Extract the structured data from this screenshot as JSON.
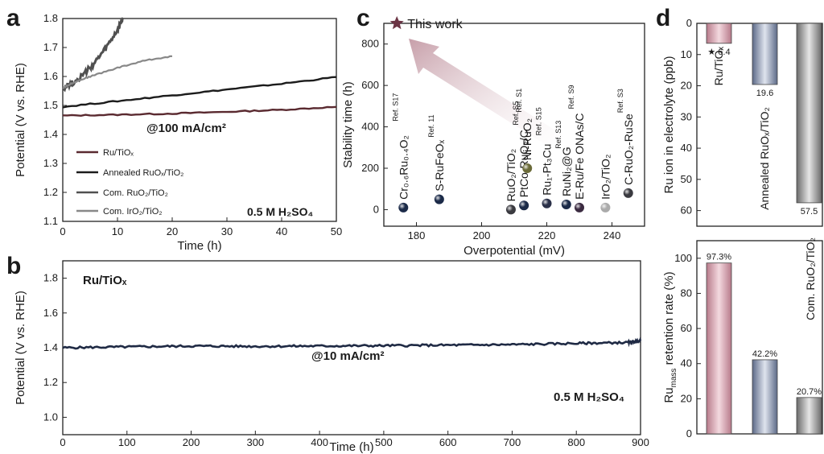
{
  "panels": {
    "a": "a",
    "b": "b",
    "c": "c",
    "d": "d"
  },
  "chart_data": [
    {
      "id": "a",
      "type": "line",
      "xlabel": "Time (h)",
      "ylabel": "Potential (V vs. RHE)",
      "xlim": [
        0,
        50
      ],
      "ylim": [
        1.1,
        1.8
      ],
      "xticks": [
        "0",
        "10",
        "20",
        "30",
        "40",
        "50"
      ],
      "yticks": [
        "1.1",
        "1.2",
        "1.3",
        "1.4",
        "1.5",
        "1.6",
        "1.7",
        "1.8"
      ],
      "annotation": "@100 mA/cm²",
      "electrolyte": "0.5 M H₂SO₄",
      "colors": {
        "Ru/TiOx": "#5a2a30",
        "Annealed": "#1c1c1c",
        "RuO2": "#505050",
        "IrO2": "#888888"
      },
      "legend": [
        "Ru/TiOₓ",
        "Annealed RuOₓ/TiO₂",
        "Com. RuO₂/TiO₂",
        "Com. IrO₂/TiO₂"
      ],
      "series": [
        {
          "name": "Ru/TiOₓ",
          "x": [
            0,
            10,
            20,
            30,
            40,
            50
          ],
          "y": [
            1.465,
            1.468,
            1.472,
            1.478,
            1.485,
            1.495
          ]
        },
        {
          "name": "Annealed RuOₓ/TiO₂",
          "x": [
            0,
            10,
            20,
            30,
            40,
            50
          ],
          "y": [
            1.495,
            1.515,
            1.535,
            1.555,
            1.575,
            1.598
          ]
        },
        {
          "name": "Com. RuO₂/TiO₂",
          "x": [
            0,
            2,
            4,
            6,
            8,
            10,
            11
          ],
          "y": [
            1.56,
            1.58,
            1.61,
            1.65,
            1.7,
            1.76,
            1.8
          ]
        },
        {
          "name": "Com. IrO₂/TiO₂",
          "x": [
            0,
            2,
            5,
            10,
            15,
            20
          ],
          "y": [
            1.56,
            1.58,
            1.6,
            1.63,
            1.655,
            1.67
          ]
        }
      ]
    },
    {
      "id": "b",
      "type": "line",
      "xlabel": "Time (h)",
      "ylabel": "Potential (V vs. RHE)",
      "xlim": [
        0,
        900
      ],
      "ylim": [
        0.9,
        1.9
      ],
      "xticks": [
        "0",
        "100",
        "200",
        "300",
        "400",
        "500",
        "600",
        "700",
        "800",
        "900"
      ],
      "yticks": [
        "1.0",
        "1.2",
        "1.4",
        "1.6",
        "1.8"
      ],
      "sample": "Ru/TiOₓ",
      "annotation": "@10 mA/cm²",
      "electrolyte": "0.5 M H₂SO₄",
      "color": "#1f2a44",
      "series": [
        {
          "name": "Ru/TiOₓ",
          "x": [
            0,
            100,
            200,
            300,
            400,
            500,
            600,
            700,
            800,
            880,
            900
          ],
          "y": [
            1.4,
            1.405,
            1.41,
            1.408,
            1.41,
            1.412,
            1.415,
            1.418,
            1.425,
            1.43,
            1.44
          ]
        }
      ]
    },
    {
      "id": "c",
      "type": "scatter",
      "xlabel": "Overpotential (mV)",
      "ylabel": "Stability time (h)",
      "xlim": [
        170,
        250
      ],
      "ylim": [
        -80,
        900
      ],
      "xticks": [
        "180",
        "200",
        "220",
        "240"
      ],
      "yticks": [
        "0",
        "200",
        "400",
        "600",
        "800"
      ],
      "this_work_label": "This work",
      "points": [
        {
          "label": "This work",
          "ref": "",
          "x": 174,
          "y": 900,
          "color": "#6b3545",
          "marker": "star"
        },
        {
          "label": "Cr₀.₆Ru₀.₄O₂",
          "ref": "Ref. S17",
          "x": 176,
          "y": 10,
          "color": "#1b2a48",
          "marker": "circle"
        },
        {
          "label": "S-RuFeOₓ",
          "ref": "Ref. 11",
          "x": 187,
          "y": 50,
          "color": "#1b2a48",
          "marker": "circle"
        },
        {
          "label": "RuO₂/TiO₂",
          "ref": "",
          "x": 209,
          "y": 0,
          "color": "#3a3a40",
          "marker": "circle"
        },
        {
          "label": "PtCo-RuO₂/C",
          "ref": "Ref. S5",
          "x": 213,
          "y": 20,
          "color": "#1b2a48",
          "marker": "circle"
        },
        {
          "label": "Ni-RuO₂",
          "ref": "Ref. S1",
          "x": 214,
          "y": 200,
          "color": "#6a6a38",
          "marker": "circle"
        },
        {
          "label": "Ru₁-Pt₃Cu",
          "ref": "Ref. S15",
          "x": 220,
          "y": 30,
          "color": "#2a3048",
          "marker": "circle"
        },
        {
          "label": "RuNi₂@G",
          "ref": "Ref. S13",
          "x": 226,
          "y": 25,
          "color": "#1b2a48",
          "marker": "circle"
        },
        {
          "label": "E-Ru/Fe ONAs/C",
          "ref": "Ref. S9",
          "x": 230,
          "y": 10,
          "color": "#3a2a40",
          "marker": "circle"
        },
        {
          "label": "IrO₂/TiO₂",
          "ref": "",
          "x": 238,
          "y": 10,
          "color": "#aaaaaa",
          "marker": "circle"
        },
        {
          "label": "C-RuO₂-RuSe",
          "ref": "Ref. S3",
          "x": 245,
          "y": 80,
          "color": "#3a3a40",
          "marker": "circle"
        }
      ]
    },
    {
      "id": "d_top",
      "type": "bar",
      "ylabel": "Ru ion in electrolyte (ppb)",
      "ylim": [
        0,
        65
      ],
      "yticks": [
        "0",
        "10",
        "20",
        "30",
        "40",
        "50",
        "60"
      ],
      "inverted": true,
      "categories": [
        "Ru/TiOₓ",
        "Annealed RuOₓ/TiO₂",
        "Com. RuO₂/TiO₂"
      ],
      "values": [
        6.4,
        19.6,
        57.5
      ],
      "value_labels": [
        "★ 6.4",
        "19.6",
        "57.5"
      ],
      "colors": [
        "#d9a7b2",
        "#98a3bd",
        "#a8a8a8"
      ]
    },
    {
      "id": "d_bottom",
      "type": "bar",
      "ylabel": "Ru mass retention rate (%)",
      "ylabel_parts": {
        "main": "Ru",
        "sub": "mass",
        "rest": " retention rate (%)"
      },
      "ylim": [
        0,
        110
      ],
      "yticks": [
        "0",
        "20",
        "40",
        "60",
        "80",
        "100"
      ],
      "categories": [
        "Ru/TiOₓ",
        "Annealed RuOₓ/TiO₂",
        "Com. RuO₂/TiO₂"
      ],
      "values": [
        97.3,
        42.2,
        20.7
      ],
      "value_labels": [
        "97.3%",
        "42.2%",
        "20.7%"
      ],
      "colors": [
        "#d9a7b2",
        "#98a3bd",
        "#a8a8a8"
      ]
    }
  ]
}
